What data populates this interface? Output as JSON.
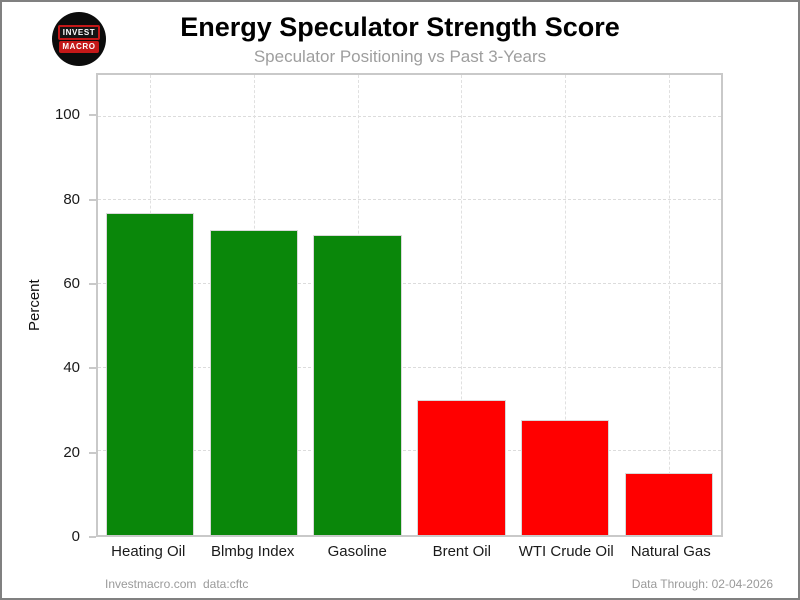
{
  "window": {
    "background": "#ffffff",
    "border_color": "#808080"
  },
  "header": {
    "title": "Energy Speculator Strength Score",
    "subtitle": "Speculator Positioning vs Past 3-Years",
    "logo": {
      "name": "investmacro-logo",
      "line1": "INVEST",
      "line2": "MACRO",
      "circle_color": "#0c0c0c",
      "accent_color": "#c41818",
      "text_color": "#ffffff"
    }
  },
  "chart_data": {
    "type": "bar",
    "title": "Energy Speculator Strength Score",
    "subtitle": "Speculator Positioning vs Past 3-Years",
    "categories": [
      "Heating Oil",
      "Blmbg Index",
      "Gasoline",
      "Brent Oil",
      "WTI Crude Oil",
      "Natural Gas"
    ],
    "values": [
      77.1,
      73.0,
      71.7,
      32.3,
      27.5,
      14.8
    ],
    "bar_colors": [
      "#0a870a",
      "#0a870a",
      "#0a870a",
      "#ff0000",
      "#ff0000",
      "#ff0000"
    ],
    "xlabel": "",
    "ylabel": "Percent",
    "yticks": [
      0,
      20,
      40,
      60,
      80,
      100
    ],
    "ylim": [
      0,
      110
    ],
    "grid": "dashed",
    "grid_color": "#dcdcdc",
    "legend": "none"
  },
  "footer": {
    "site": "Investmacro.com",
    "source": "data:cftc",
    "data_through": "Data Through: 02-04-2026"
  }
}
